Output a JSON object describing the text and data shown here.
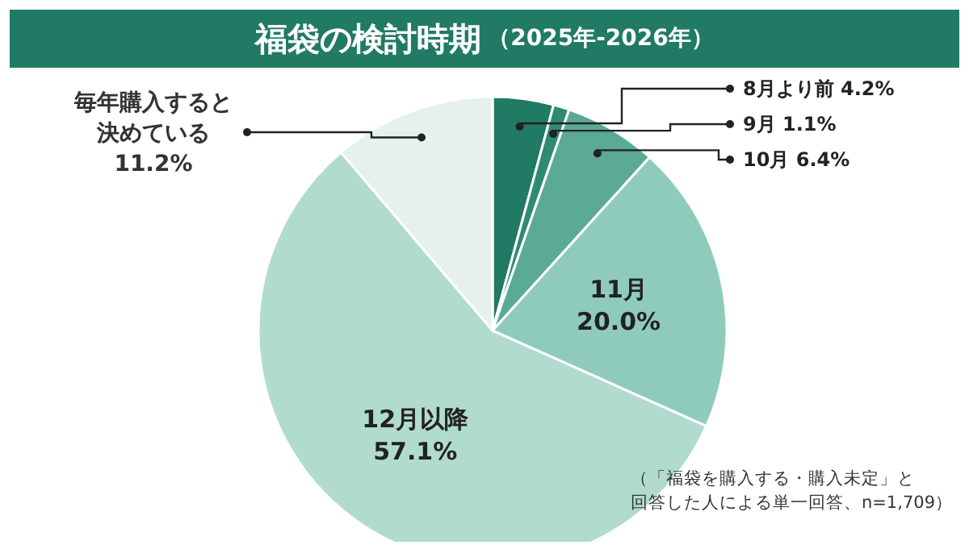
{
  "chart_data": {
    "type": "pie",
    "title": "福袋の検討時期",
    "subtitle": "（2025年-2026年）",
    "categories": [
      "8月より前",
      "9月",
      "10月",
      "11月",
      "12月以降",
      "毎年購入すると決めている"
    ],
    "values": [
      4.2,
      1.1,
      6.4,
      20.0,
      57.1,
      11.2
    ],
    "value_labels": [
      "4.2%",
      "1.1%",
      "6.4%",
      "20.0%",
      "57.1%",
      "11.2%"
    ],
    "colors": [
      "#217a63",
      "#2e8b71",
      "#5aaa94",
      "#8fcbbb",
      "#b2dbd0",
      "#e6f1ee"
    ],
    "annotations": [
      "（「福袋を購入する・購入未定」と",
      "回答した人による単一回答、n=1,709）"
    ]
  }
}
